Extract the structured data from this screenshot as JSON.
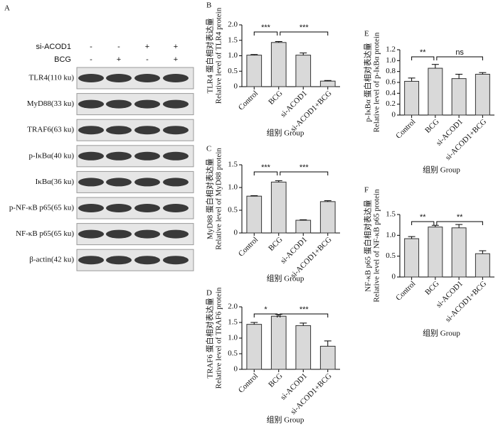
{
  "panel_a": {
    "label": "A",
    "conditions": [
      {
        "name": "si-ACOD1",
        "signs": [
          "-",
          "-",
          "+",
          "+"
        ]
      },
      {
        "name": "BCG",
        "signs": [
          "-",
          "+",
          "-",
          "+"
        ]
      }
    ],
    "rows": [
      "TLR4(110 ku)",
      "MyD88(33 ku)",
      "TRAF6(63 ku)",
      "p-IκBα(40 ku)",
      "IκBα(36 ku)",
      "p-NF-κB p65(65 ku)",
      "NF-κB p65(65 ku)",
      "β-actin(42 ku)"
    ]
  },
  "chart_data": [
    {
      "type": "bar",
      "panel": "B",
      "ylabel_cn": "TLR4 蛋白相对表达量",
      "ylabel": "Relative level of TLR4 protein",
      "xlabel": "组别 Group",
      "categories": [
        "Control",
        "BCG",
        "si-ACOD1",
        "si-ACOD1+BCG"
      ],
      "values": [
        1.02,
        1.43,
        1.02,
        0.18
      ],
      "errors": [
        0.02,
        0.03,
        0.07,
        0.02
      ],
      "color": "#d9d9d9",
      "ylim": [
        0,
        2
      ],
      "yticks": [
        0,
        0.5,
        {
          "value": 1,
          "label": "1.0"
        },
        1.5,
        {
          "value": 2,
          "label": "2.0"
        }
      ],
      "annotations": [
        {
          "text": "***",
          "span": [
            0,
            1
          ]
        },
        {
          "text": "***",
          "span": [
            1,
            3
          ]
        }
      ]
    },
    {
      "type": "bar",
      "panel": "C",
      "ylabel_cn": "MyD88 蛋白相对表达量",
      "ylabel": "Relative level of MyD88 protein",
      "xlabel": "组别 Group",
      "categories": [
        "Control",
        "BCG",
        "si-ACOD1",
        "si-ACOD1+BCG"
      ],
      "values": [
        0.81,
        1.12,
        0.28,
        0.69
      ],
      "errors": [
        0.01,
        0.03,
        0.01,
        0.02
      ],
      "color": "#d9d9d9",
      "ylim": [
        0,
        1.5
      ],
      "yticks": [
        0,
        0.5,
        {
          "value": 1,
          "label": "1.0"
        },
        1.5
      ],
      "annotations": [
        {
          "text": "***",
          "span": [
            0,
            1
          ]
        },
        {
          "text": "***",
          "span": [
            1,
            3
          ]
        }
      ]
    },
    {
      "type": "bar",
      "panel": "D",
      "ylabel_cn": "TRAF6 蛋白相对表达量",
      "ylabel": "Relative level of TRAF6 protein",
      "xlabel": "组别 Group",
      "categories": [
        "Control",
        "BCG",
        "si-ACOD1",
        "si-ACOD1+BCG"
      ],
      "values": [
        1.44,
        1.7,
        1.4,
        0.74
      ],
      "errors": [
        0.06,
        0.06,
        0.08,
        0.17
      ],
      "color": "#d9d9d9",
      "ylim": [
        0,
        2
      ],
      "yticks": [
        0,
        0.5,
        {
          "value": 1,
          "label": "1.0"
        },
        1.5,
        {
          "value": 2,
          "label": "2.0"
        }
      ],
      "annotations": [
        {
          "text": "*",
          "span": [
            0,
            1
          ]
        },
        {
          "text": "***",
          "span": [
            1,
            3
          ]
        }
      ]
    },
    {
      "type": "bar",
      "panel": "E",
      "ylabel_cn": "p-IκBα 蛋白相对表达量",
      "ylabel": "Relative level of p-IκBα protein",
      "xlabel": "组别 Group",
      "categories": [
        "Control",
        "BCG",
        "si-ACOD1",
        "si-ACOD1+BCG"
      ],
      "values": [
        0.62,
        0.86,
        0.67,
        0.75
      ],
      "errors": [
        0.06,
        0.07,
        0.08,
        0.03
      ],
      "color": "#d9d9d9",
      "ylim": [
        0,
        1.2
      ],
      "yticks": [
        0,
        0.2,
        0.4,
        0.6,
        0.8,
        {
          "value": 1,
          "label": "1.0"
        },
        1.2
      ],
      "annotations": [
        {
          "text": "**",
          "span": [
            0,
            1
          ]
        },
        {
          "text": "ns",
          "span": [
            1,
            3
          ]
        }
      ]
    },
    {
      "type": "bar",
      "panel": "F",
      "ylabel_cn": "NF-κB p65 蛋白相对表达量",
      "ylabel": "Relative level of NF-κB p65 protein",
      "xlabel": "组别 Group",
      "categories": [
        "Control",
        "BCG",
        "si-ACOD1",
        "si-ACOD1+BCG"
      ],
      "values": [
        0.92,
        1.2,
        1.18,
        0.56
      ],
      "errors": [
        0.05,
        0.04,
        0.08,
        0.07
      ],
      "color": "#d9d9d9",
      "ylim": [
        0,
        1.5
      ],
      "yticks": [
        0,
        0.5,
        {
          "value": 1,
          "label": "1.0"
        },
        1.5
      ],
      "annotations": [
        {
          "text": "**",
          "span": [
            0,
            1
          ]
        },
        {
          "text": "**",
          "span": [
            1,
            3
          ]
        }
      ]
    }
  ]
}
